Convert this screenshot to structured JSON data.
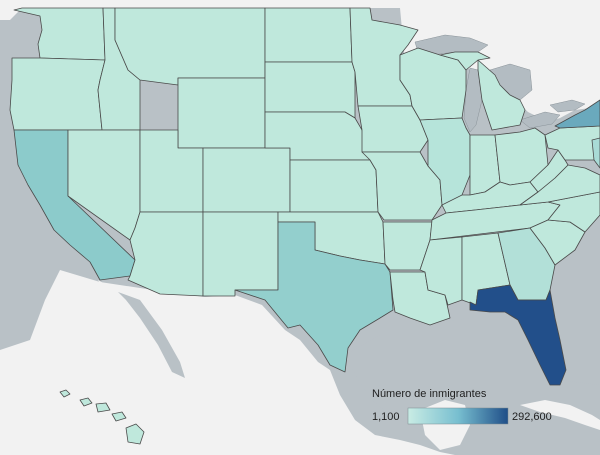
{
  "legend": {
    "title": "Número de inmigrantes",
    "min_label": "1,100",
    "max_label": "292,600",
    "min_color": "#c9ece4",
    "max_color": "#1f4e88"
  },
  "colors": {
    "ocean": "#b9c1c6",
    "land_other": "#f2f2f2",
    "lakes": "#b3bcc2",
    "base_state": "#bfe8dc",
    "california": "#8ccbcb",
    "texas": "#93cfcd",
    "florida": "#224f8a",
    "new_york": "#6aa9bd",
    "georgia": "#b2e0d8",
    "illinois": "#b6e4da",
    "new_jersey": "#a9dbd6"
  }
}
